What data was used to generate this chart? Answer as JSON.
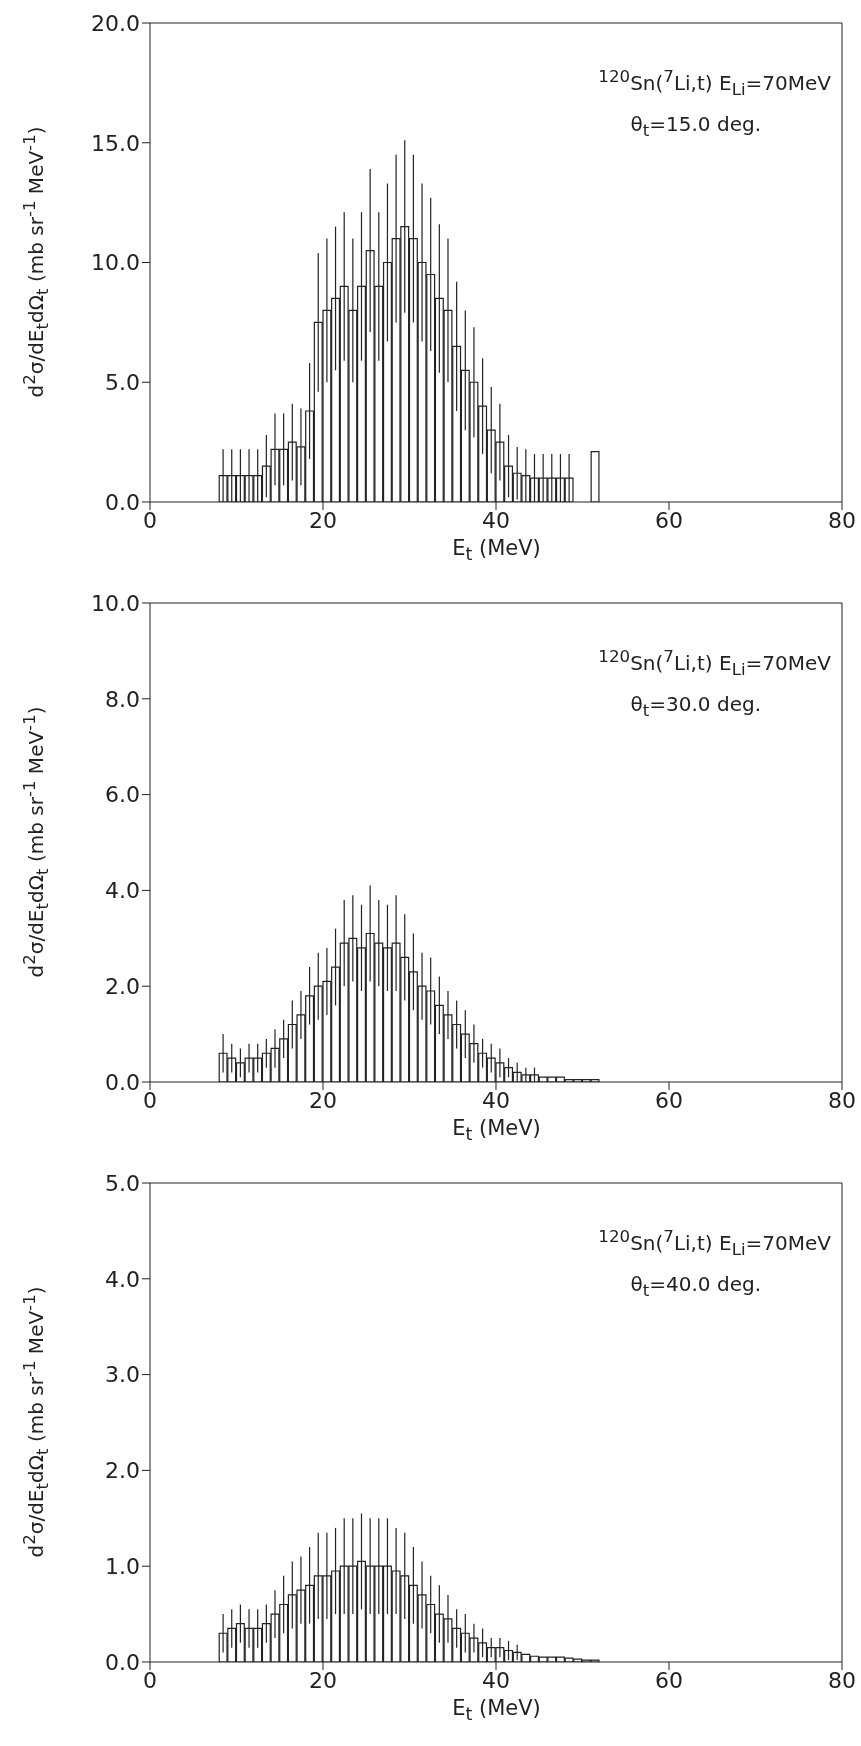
{
  "chart_data": [
    {
      "type": "histogram",
      "xlabel": "E$_{t}$  (MeV)",
      "ylabel": "d$^{2}$σ/dE$_{t}$dΩ$_{t}$  (mb sr$^{-1}$ MeV$^{-1}$)",
      "annotations": [
        "$^{120}$Sn($^{7}$Li,t)   E$_{Li}$=70MeV",
        "θ$_{t}$=15.0 deg."
      ],
      "color": "#222222",
      "bins": [
        8,
        9,
        10,
        11,
        12,
        13,
        14,
        15,
        16,
        17,
        18,
        19,
        20,
        21,
        22,
        23,
        24,
        25,
        26,
        27,
        28,
        29,
        30,
        31,
        32,
        33,
        34,
        35,
        36,
        37,
        38,
        39,
        40,
        41,
        42,
        43,
        44,
        45,
        46,
        47,
        48,
        49,
        50,
        51,
        52
      ],
      "values": [
        1.1,
        1.1,
        1.1,
        1.1,
        1.1,
        1.5,
        2.2,
        2.2,
        2.5,
        2.3,
        3.8,
        7.5,
        8,
        8.5,
        9,
        8,
        9,
        10.5,
        9,
        10,
        11,
        11.5,
        11,
        10,
        9.5,
        8.5,
        8,
        6.5,
        5.5,
        5,
        4,
        3,
        2.5,
        1.5,
        1.2,
        1.1,
        1,
        1,
        1,
        1,
        1,
        0,
        0,
        2.1
      ],
      "errors": [
        1.1,
        1.1,
        1.1,
        1.1,
        1.1,
        1.3,
        1.5,
        1.5,
        1.6,
        1.6,
        2,
        2.9,
        3,
        3,
        3.1,
        3,
        3.1,
        3.4,
        3.1,
        3.3,
        3.5,
        3.6,
        3.5,
        3.3,
        3.2,
        3.1,
        3,
        2.7,
        2.5,
        2.3,
        2,
        1.8,
        1.6,
        1.3,
        1.1,
        1.1,
        1,
        1,
        1,
        1,
        1,
        null,
        null,
        null
      ],
      "xlim": [
        0,
        80
      ],
      "xticks": [
        0,
        20,
        40,
        60,
        80
      ],
      "ylim": [
        0,
        20
      ],
      "yticks": [
        {
          "value": 0,
          "label": "0.0"
        },
        {
          "value": 5,
          "label": "5.0"
        },
        {
          "value": 10,
          "label": "10.0"
        },
        {
          "value": 15,
          "label": "15.0"
        },
        {
          "value": 20,
          "label": "20.0"
        }
      ]
    },
    {
      "type": "histogram",
      "xlabel": "E$_{t}$  (MeV)",
      "ylabel": "d$^{2}$σ/dE$_{t}$dΩ$_{t}$  (mb sr$^{-1}$ MeV$^{-1}$)",
      "annotations": [
        "$^{120}$Sn($^{7}$Li,t)   E$_{Li}$=70MeV",
        "θ$_{t}$=30.0 deg."
      ],
      "color": "#222222",
      "bins": [
        8,
        9,
        10,
        11,
        12,
        13,
        14,
        15,
        16,
        17,
        18,
        19,
        20,
        21,
        22,
        23,
        24,
        25,
        26,
        27,
        28,
        29,
        30,
        31,
        32,
        33,
        34,
        35,
        36,
        37,
        38,
        39,
        40,
        41,
        42,
        43,
        44,
        45,
        46,
        47,
        48,
        49,
        50,
        51,
        52
      ],
      "values": [
        0.6,
        0.5,
        0.4,
        0.5,
        0.5,
        0.6,
        0.7,
        0.9,
        1.2,
        1.4,
        1.8,
        2.0,
        2.1,
        2.4,
        2.9,
        3.0,
        2.8,
        3.1,
        2.9,
        2.8,
        2.9,
        2.6,
        2.3,
        2.0,
        1.9,
        1.6,
        1.4,
        1.2,
        1.0,
        0.8,
        0.6,
        0.5,
        0.4,
        0.3,
        0.2,
        0.15,
        0.15,
        0.1,
        0.1,
        0.1,
        0.05,
        0.05,
        0.05,
        0.05
      ],
      "errors": [
        0.4,
        0.3,
        0.3,
        0.3,
        0.3,
        0.3,
        0.4,
        0.4,
        0.5,
        0.5,
        0.6,
        0.7,
        0.7,
        0.8,
        0.9,
        0.9,
        0.9,
        1.0,
        0.9,
        0.9,
        1.0,
        0.9,
        0.8,
        0.7,
        0.7,
        0.6,
        0.5,
        0.5,
        0.5,
        0.4,
        0.3,
        0.3,
        0.3,
        0.2,
        0.2,
        0.15,
        0.15,
        null,
        null,
        null,
        null,
        null,
        null,
        null
      ],
      "xlim": [
        0,
        80
      ],
      "xticks": [
        0,
        20,
        40,
        60,
        80
      ],
      "ylim": [
        0,
        10
      ],
      "yticks": [
        {
          "value": 0,
          "label": "0.0"
        },
        {
          "value": 2,
          "label": "2.0"
        },
        {
          "value": 4,
          "label": "4.0"
        },
        {
          "value": 6,
          "label": "6.0"
        },
        {
          "value": 8,
          "label": "8.0"
        },
        {
          "value": 10,
          "label": "10.0"
        }
      ]
    },
    {
      "type": "histogram",
      "xlabel": "E$_{t}$  (MeV)",
      "ylabel": "d$^{2}$σ/dE$_{t}$dΩ$_{t}$  (mb sr$^{-1}$ MeV$^{-1}$)",
      "annotations": [
        "$^{120}$Sn($^{7}$Li,t)   E$_{Li}$=70MeV",
        "θ$_{t}$=40.0 deg."
      ],
      "color": "#222222",
      "bins": [
        8,
        9,
        10,
        11,
        12,
        13,
        14,
        15,
        16,
        17,
        18,
        19,
        20,
        21,
        22,
        23,
        24,
        25,
        26,
        27,
        28,
        29,
        30,
        31,
        32,
        33,
        34,
        35,
        36,
        37,
        38,
        39,
        40,
        41,
        42,
        43,
        44,
        45,
        46,
        47,
        48,
        49,
        50,
        51,
        52
      ],
      "values": [
        0.3,
        0.35,
        0.4,
        0.35,
        0.35,
        0.4,
        0.5,
        0.6,
        0.7,
        0.75,
        0.8,
        0.9,
        0.9,
        0.95,
        1.0,
        1.0,
        1.05,
        1.0,
        1.0,
        1.0,
        0.95,
        0.9,
        0.8,
        0.7,
        0.6,
        0.5,
        0.45,
        0.35,
        0.3,
        0.25,
        0.2,
        0.15,
        0.15,
        0.12,
        0.1,
        0.08,
        0.06,
        0.05,
        0.05,
        0.05,
        0.04,
        0.03,
        0.02,
        0.02
      ],
      "errors": [
        0.2,
        0.2,
        0.2,
        0.2,
        0.2,
        0.2,
        0.25,
        0.3,
        0.35,
        0.35,
        0.4,
        0.45,
        0.45,
        0.45,
        0.5,
        0.5,
        0.5,
        0.5,
        0.5,
        0.5,
        0.45,
        0.45,
        0.4,
        0.35,
        0.3,
        0.3,
        0.25,
        0.2,
        0.2,
        0.15,
        0.15,
        0.1,
        0.1,
        0.1,
        0.08,
        null,
        null,
        null,
        null,
        null,
        null,
        null,
        null,
        null
      ],
      "xlim": [
        0,
        80
      ],
      "xticks": [
        0,
        20,
        40,
        60,
        80
      ],
      "ylim": [
        0,
        5
      ],
      "yticks": [
        {
          "value": 0,
          "label": "0.0"
        },
        {
          "value": 1,
          "label": "1.0"
        },
        {
          "value": 2,
          "label": "2.0"
        },
        {
          "value": 3,
          "label": "3.0"
        },
        {
          "value": 4,
          "label": "4.0"
        },
        {
          "value": 5,
          "label": "5.0"
        }
      ]
    }
  ]
}
